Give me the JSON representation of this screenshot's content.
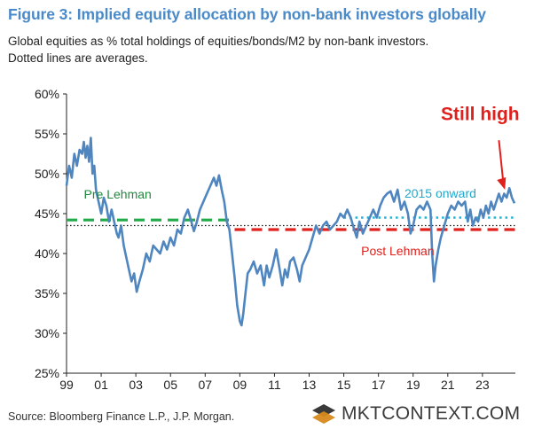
{
  "figure": {
    "title": "Figure 3: Implied equity allocation by non-bank investors globally",
    "subtitle_line1": "Global equities as % total holdings of equities/bonds/M2 by non-bank investors.",
    "subtitle_line2": "Dotted lines are averages.",
    "source": "Source: Bloomberg Finance L.P., J.P. Morgan.",
    "logo_text": "MKTCONTEXT.COM"
  },
  "colors": {
    "title": "#4a8ac9",
    "series": "#4f86c0",
    "pre_lehman": "#22aa4a",
    "post_lehman": "#e0201c",
    "avg_2015": "#1fb4d6",
    "overall_avg": "#111111",
    "annotation": "#e0201c",
    "logo_accent": "#d88a1c"
  },
  "chart_data": {
    "type": "line",
    "title": "",
    "xlabel": "",
    "ylabel": "",
    "ylim": [
      25,
      60
    ],
    "xlim": [
      1999,
      2024.9
    ],
    "y_ticks": [
      25,
      30,
      35,
      40,
      45,
      50,
      55,
      60
    ],
    "y_tick_labels": [
      "25%",
      "30%",
      "35%",
      "40%",
      "45%",
      "50%",
      "55%",
      "60%"
    ],
    "x_ticks": [
      1999,
      2001,
      2003,
      2005,
      2007,
      2009,
      2011,
      2013,
      2015,
      2017,
      2019,
      2021,
      2023
    ],
    "x_tick_labels": [
      "99",
      "01",
      "03",
      "05",
      "07",
      "09",
      "11",
      "13",
      "15",
      "17",
      "19",
      "21",
      "23"
    ],
    "grid": false,
    "series": [
      {
        "name": "",
        "x": [
          1999.0,
          1999.15,
          1999.3,
          1999.45,
          1999.6,
          1999.75,
          1999.9,
          2000.0,
          2000.1,
          2000.2,
          2000.3,
          2000.4,
          2000.5,
          2000.6,
          2000.7,
          2000.85,
          2001.0,
          2001.15,
          2001.3,
          2001.45,
          2001.6,
          2001.75,
          2001.9,
          2002.0,
          2002.15,
          2002.3,
          2002.45,
          2002.6,
          2002.75,
          2002.9,
          2003.05,
          2003.2,
          2003.4,
          2003.6,
          2003.8,
          2004.0,
          2004.2,
          2004.4,
          2004.6,
          2004.8,
          2005.0,
          2005.2,
          2005.4,
          2005.6,
          2005.8,
          2006.0,
          2006.2,
          2006.35,
          2006.5,
          2006.7,
          2006.9,
          2007.1,
          2007.3,
          2007.5,
          2007.65,
          2007.8,
          2007.95,
          2008.1,
          2008.25,
          2008.4,
          2008.55,
          2008.7,
          2008.85,
          2009.0,
          2009.1,
          2009.2,
          2009.3,
          2009.45,
          2009.6,
          2009.8,
          2010.0,
          2010.2,
          2010.4,
          2010.55,
          2010.7,
          2010.9,
          2011.1,
          2011.3,
          2011.45,
          2011.6,
          2011.75,
          2011.9,
          2012.1,
          2012.3,
          2012.45,
          2012.6,
          2012.8,
          2013.0,
          2013.2,
          2013.4,
          2013.6,
          2013.8,
          2014.0,
          2014.2,
          2014.4,
          2014.6,
          2014.8,
          2015.0,
          2015.2,
          2015.4,
          2015.6,
          2015.75,
          2015.9,
          2016.1,
          2016.3,
          2016.5,
          2016.7,
          2016.9,
          2017.1,
          2017.3,
          2017.5,
          2017.7,
          2017.9,
          2018.1,
          2018.3,
          2018.5,
          2018.7,
          2018.85,
          2019.0,
          2019.2,
          2019.4,
          2019.6,
          2019.8,
          2020.0,
          2020.1,
          2020.2,
          2020.3,
          2020.45,
          2020.6,
          2020.8,
          2021.0,
          2021.2,
          2021.4,
          2021.6,
          2021.8,
          2022.0,
          2022.15,
          2022.3,
          2022.45,
          2022.6,
          2022.75,
          2022.9,
          2023.05,
          2023.2,
          2023.35,
          2023.5,
          2023.65,
          2023.8,
          2023.95,
          2024.1,
          2024.25,
          2024.4,
          2024.55,
          2024.7,
          2024.85
        ],
        "values": [
          48.5,
          51.0,
          49.5,
          52.5,
          51.0,
          53.0,
          52.5,
          54.0,
          52.0,
          53.5,
          51.5,
          54.5,
          50.0,
          51.0,
          48.0,
          46.5,
          45.0,
          47.0,
          46.0,
          44.0,
          45.5,
          44.0,
          42.5,
          42.0,
          43.5,
          41.0,
          39.5,
          38.0,
          36.5,
          37.5,
          35.2,
          36.5,
          38.0,
          40.0,
          39.0,
          41.0,
          40.5,
          40.0,
          41.5,
          40.5,
          42.0,
          41.0,
          43.0,
          42.5,
          44.5,
          45.5,
          44.0,
          42.8,
          43.8,
          45.5,
          46.5,
          47.5,
          48.5,
          49.5,
          48.5,
          49.8,
          48.0,
          46.5,
          44.0,
          43.0,
          40.0,
          37.0,
          33.5,
          31.5,
          31.0,
          32.5,
          34.5,
          37.5,
          38.0,
          39.0,
          37.5,
          38.5,
          36.0,
          38.5,
          37.0,
          38.5,
          40.5,
          38.0,
          36.0,
          38.0,
          37.0,
          39.0,
          39.5,
          38.0,
          36.5,
          38.5,
          39.5,
          40.5,
          42.0,
          43.5,
          42.5,
          43.5,
          44.0,
          43.0,
          43.5,
          44.0,
          45.0,
          44.5,
          45.5,
          44.5,
          43.0,
          42.0,
          44.0,
          42.5,
          43.5,
          44.5,
          45.5,
          44.5,
          46.0,
          47.0,
          47.5,
          47.8,
          46.5,
          48.0,
          45.5,
          46.5,
          45.0,
          42.5,
          43.5,
          45.5,
          46.0,
          45.5,
          46.5,
          45.5,
          40.0,
          36.5,
          38.5,
          40.5,
          42.0,
          43.5,
          45.0,
          46.0,
          45.5,
          46.5,
          46.0,
          46.5,
          44.0,
          45.5,
          43.5,
          44.5,
          44.0,
          45.5,
          44.5,
          46.0,
          45.0,
          46.5,
          45.5,
          46.5,
          47.5,
          46.5,
          47.5,
          47.0,
          48.2,
          47.0,
          46.3
        ]
      }
    ],
    "reference_lines": [
      {
        "name": "Pre Lehman",
        "y": 44.2,
        "x_start": 1999.0,
        "x_end": 2008.7,
        "style": "dashed"
      },
      {
        "name": "Post Lehman",
        "y": 43.0,
        "x_start": 2008.7,
        "x_end": 2024.9,
        "style": "dashed"
      },
      {
        "name": "2015 onward",
        "y": 44.5,
        "x_start": 2015.0,
        "x_end": 2024.9,
        "style": "dotted"
      },
      {
        "name": "",
        "y": 43.5,
        "x_start": 1999.0,
        "x_end": 2024.9,
        "style": "dotted"
      }
    ],
    "annotations": [
      {
        "text": "Still high",
        "arrow_to_x": 2024.3,
        "arrow_to_y": 48.0
      }
    ]
  }
}
